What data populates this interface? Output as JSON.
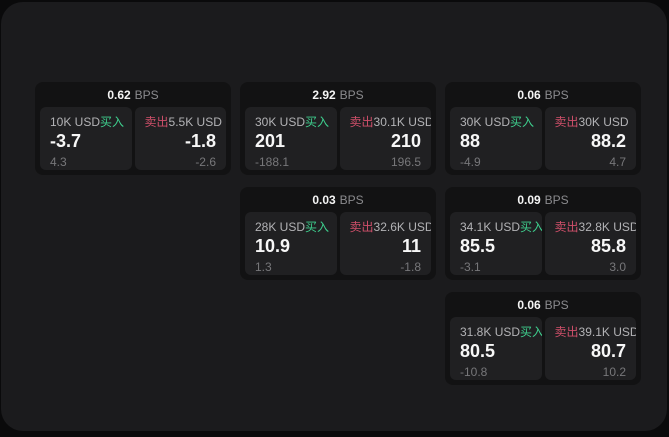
{
  "labels": {
    "bps": "BPS",
    "buy": "买入",
    "sell": "卖出"
  },
  "colors": {
    "buy_accent": "#3ecf8e",
    "sell_accent": "#cf4f6a",
    "window_background": "#1b1b1d",
    "card_background": "#121213",
    "panel_background": "#202022"
  },
  "cards": [
    {
      "bps": "0.62",
      "buy": {
        "amount": "10K USD",
        "price": "-3.7",
        "delta": "4.3"
      },
      "sell": {
        "amount": "5.5K USD",
        "price": "-1.8",
        "delta": "-2.6"
      }
    },
    {
      "bps": "2.92",
      "buy": {
        "amount": "30K USD",
        "price": "201",
        "delta": "-188.1"
      },
      "sell": {
        "amount": "30.1K USD",
        "price": "210",
        "delta": "196.5"
      }
    },
    {
      "bps": "0.06",
      "buy": {
        "amount": "30K USD",
        "price": "88",
        "delta": "-4.9"
      },
      "sell": {
        "amount": "30K USD",
        "price": "88.2",
        "delta": "4.7"
      }
    },
    {
      "bps": "0.03",
      "buy": {
        "amount": "28K USD",
        "price": "10.9",
        "delta": "1.3"
      },
      "sell": {
        "amount": "32.6K USD",
        "price": "11",
        "delta": "-1.8"
      }
    },
    {
      "bps": "0.09",
      "buy": {
        "amount": "34.1K USD",
        "price": "85.5",
        "delta": "-3.1"
      },
      "sell": {
        "amount": "32.8K USD",
        "price": "85.8",
        "delta": "3.0"
      }
    },
    {
      "bps": "0.06",
      "buy": {
        "amount": "31.8K USD",
        "price": "80.5",
        "delta": "-10.8"
      },
      "sell": {
        "amount": "39.1K USD",
        "price": "80.7",
        "delta": "10.2"
      }
    }
  ]
}
